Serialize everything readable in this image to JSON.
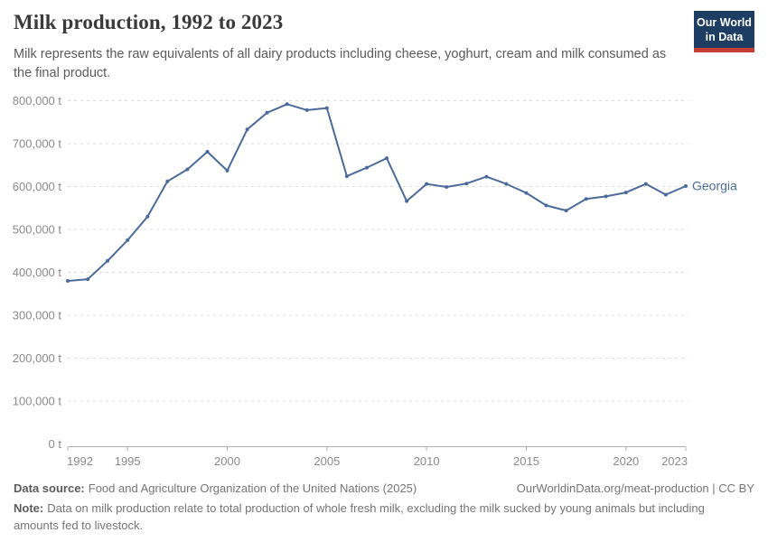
{
  "header": {
    "title": "Milk production, 1992 to 2023",
    "subtitle": "Milk represents the raw equivalents of all dairy products including cheese, yoghurt, cream and milk consumed as the final product."
  },
  "logo": {
    "line1": "Our World",
    "line2": "in Data"
  },
  "colors": {
    "accent_blue": "#4c6a9c",
    "logo_bg": "#1d3d63",
    "logo_red": "#c53e36"
  },
  "chart_data": {
    "type": "line",
    "title": "Milk production, 1992 to 2023",
    "entity": "Georgia",
    "unit": "t",
    "x": [
      1992,
      1993,
      1994,
      1995,
      1996,
      1997,
      1998,
      1999,
      2000,
      2001,
      2002,
      2003,
      2004,
      2005,
      2006,
      2007,
      2008,
      2009,
      2010,
      2011,
      2012,
      2013,
      2014,
      2015,
      2016,
      2017,
      2018,
      2019,
      2020,
      2021,
      2022,
      2023
    ],
    "values": [
      380000,
      384000,
      427000,
      475000,
      530000,
      612000,
      640000,
      681000,
      637000,
      733000,
      772000,
      792000,
      778000,
      783000,
      624000,
      644000,
      666000,
      566000,
      606000,
      599000,
      607000,
      623000,
      606000,
      585000,
      556000,
      544000,
      571000,
      577000,
      586000,
      606000,
      581000,
      601000
    ],
    "x_ticks": [
      1992,
      1995,
      2000,
      2005,
      2010,
      2015,
      2020,
      2023
    ],
    "y_ticks": [
      0,
      100000,
      200000,
      300000,
      400000,
      500000,
      600000,
      700000,
      800000
    ],
    "y_tick_suffix": " t",
    "ylim": [
      0,
      800000
    ],
    "grid": true,
    "legend_position": "end-of-line-label",
    "line_color": "#4c6a9c"
  },
  "footer": {
    "source_label": "Data source:",
    "source_text": "Food and Agriculture Organization of the United Nations (2025)",
    "link": "OurWorldinData.org/meat-production | CC BY",
    "note_label": "Note:",
    "note_text": "Data on milk production relate to total production of whole fresh milk, excluding the milk sucked by young animals but including amounts fed to livestock."
  }
}
